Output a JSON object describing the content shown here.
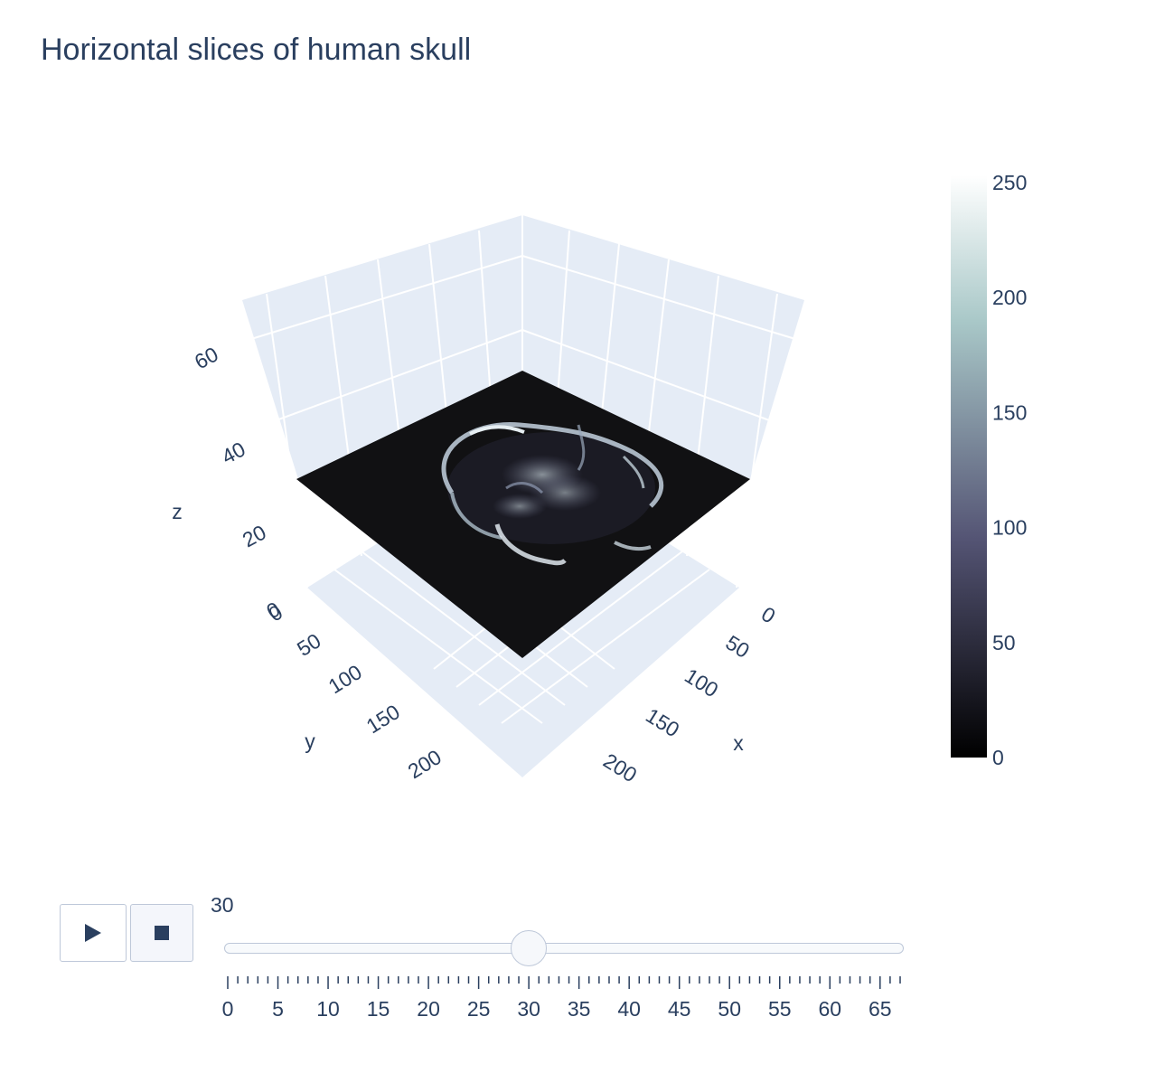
{
  "chart_data": {
    "type": "surface",
    "title": "Horizontal slices of human skull",
    "axes": {
      "x": {
        "label": "x",
        "ticks": [
          "0",
          "50",
          "100",
          "150",
          "200"
        ],
        "range": [
          0,
          237
        ]
      },
      "y": {
        "label": "y",
        "ticks": [
          "0",
          "50",
          "100",
          "150",
          "200"
        ],
        "range": [
          0,
          237
        ]
      },
      "z": {
        "label": "z",
        "ticks": [
          "0",
          "20",
          "40",
          "60"
        ],
        "range": [
          0,
          68
        ]
      }
    },
    "current_slice_z": 30,
    "colorbar": {
      "colorscale": "bone",
      "range": [
        0,
        250
      ],
      "ticks": [
        "0",
        "50",
        "100",
        "150",
        "200",
        "250"
      ],
      "stops": [
        {
          "v": 0,
          "color": "#000000"
        },
        {
          "v": 0.375,
          "color": "#545474"
        },
        {
          "v": 0.75,
          "color": "#a9c8c8"
        },
        {
          "v": 1,
          "color": "#ffffff"
        }
      ]
    }
  },
  "slider": {
    "current_value_label": "30",
    "min": 0,
    "max": 67,
    "value": 30,
    "major_step": 5,
    "tick_labels": [
      "0",
      "5",
      "10",
      "15",
      "20",
      "25",
      "30",
      "35",
      "40",
      "45",
      "50",
      "55",
      "60",
      "65"
    ]
  },
  "controls": {
    "play_icon": "play-icon",
    "stop_icon": "stop-icon"
  }
}
